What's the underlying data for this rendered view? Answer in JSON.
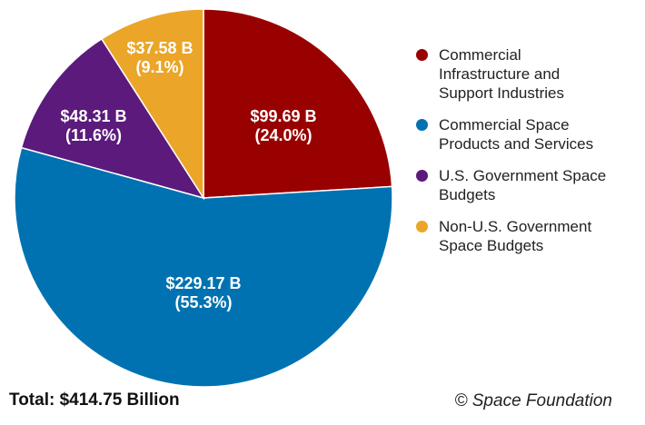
{
  "chart_data": {
    "type": "pie",
    "title": "",
    "unit": "B",
    "total_label": "Total: $414.75 Billion",
    "copyright": "© Space Foundation",
    "slices": [
      {
        "name": "Commercial Infrastructure and Support Industries",
        "value": 99.69,
        "percent": 24.0,
        "value_label": "$99.69 B",
        "percent_label": "(24.0%)",
        "color": "#990000"
      },
      {
        "name": "Commercial Space Products and Services",
        "value": 229.17,
        "percent": 55.3,
        "value_label": "$229.17 B",
        "percent_label": "(55.3%)",
        "color": "#0072B1"
      },
      {
        "name": "U.S. Government Space Budgets",
        "value": 48.31,
        "percent": 11.6,
        "value_label": "$48.31 B",
        "percent_label": "(11.6%)",
        "color": "#5B1A7C"
      },
      {
        "name": "Non-U.S. Government Space Budgets",
        "value": 37.58,
        "percent": 9.1,
        "value_label": "$37.58 B",
        "percent_label": "(9.1%)",
        "color": "#EBA528"
      }
    ],
    "legend": {
      "position": "right",
      "items": [
        {
          "lines": [
            "Commercial",
            "Infrastructure and",
            "Support Industries"
          ],
          "color": "#990000"
        },
        {
          "lines": [
            "Commercial Space",
            "Products and Services"
          ],
          "color": "#0072B1"
        },
        {
          "lines": [
            "U.S. Government Space",
            "Budgets"
          ],
          "color": "#5B1A7C"
        },
        {
          "lines": [
            "Non-U.S. Government",
            "Space Budgets"
          ],
          "color": "#EBA528"
        }
      ]
    }
  }
}
